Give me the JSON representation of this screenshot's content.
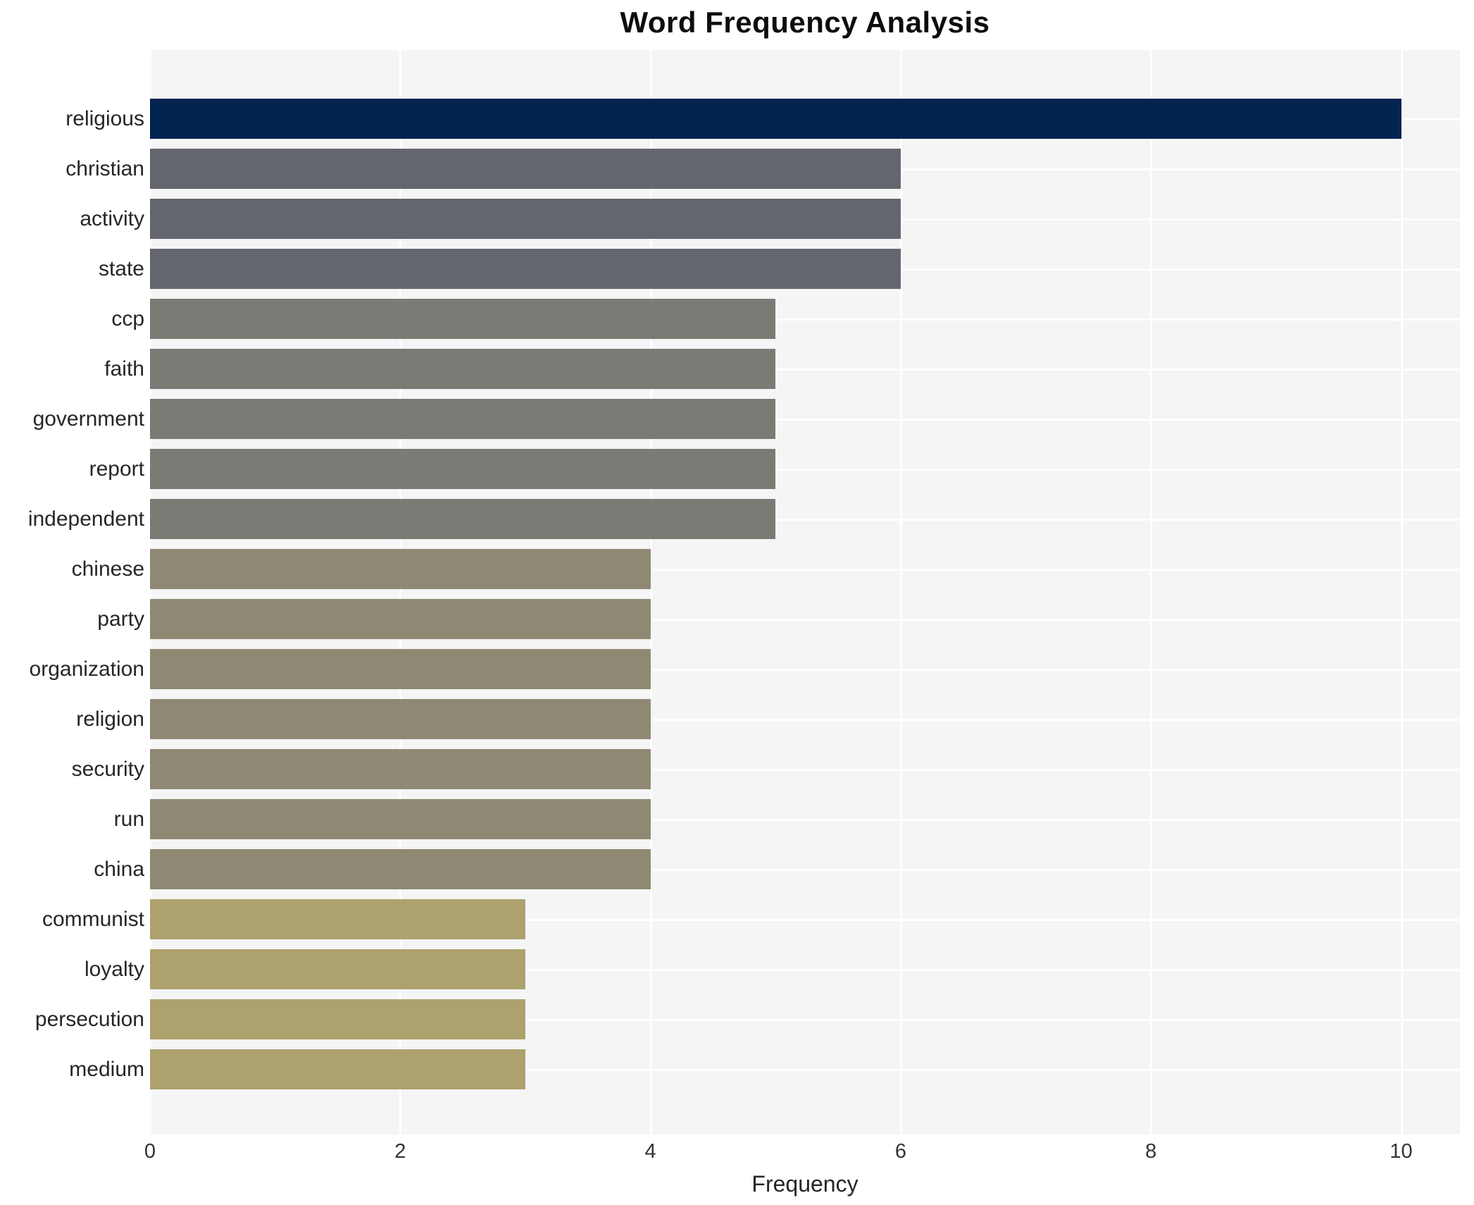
{
  "title": "Word Frequency Analysis",
  "chart_data": {
    "type": "bar",
    "orientation": "horizontal",
    "title": "Word Frequency Analysis",
    "xlabel": "Frequency",
    "ylabel": "",
    "categories": [
      "religious",
      "christian",
      "activity",
      "state",
      "ccp",
      "faith",
      "government",
      "report",
      "independent",
      "chinese",
      "party",
      "organization",
      "religion",
      "security",
      "run",
      "china",
      "communist",
      "loyalty",
      "persecution",
      "medium"
    ],
    "values": [
      10,
      6,
      6,
      6,
      5,
      5,
      5,
      5,
      5,
      4,
      4,
      4,
      4,
      4,
      4,
      4,
      3,
      3,
      3,
      3
    ],
    "bar_colors": [
      "#032350",
      "#64666e",
      "#64666e",
      "#64666e",
      "#7b7a75",
      "#7b7a75",
      "#7b7a75",
      "#7b7a75",
      "#7b7a75",
      "#8f8973",
      "#8f8973",
      "#8f8973",
      "#8f8973",
      "#8f8973",
      "#8f8973",
      "#8f8973",
      "#ada26e",
      "#ada26e",
      "#ada26e",
      "#ada26e"
    ],
    "xticks": [
      0,
      2,
      4,
      6,
      8,
      10
    ],
    "xlim": [
      0,
      10.47
    ],
    "grid": "white gridlines on light gray panel",
    "panel_bg": "#f5f5f6",
    "gridline_color": "#ffffff",
    "legend": "none"
  }
}
